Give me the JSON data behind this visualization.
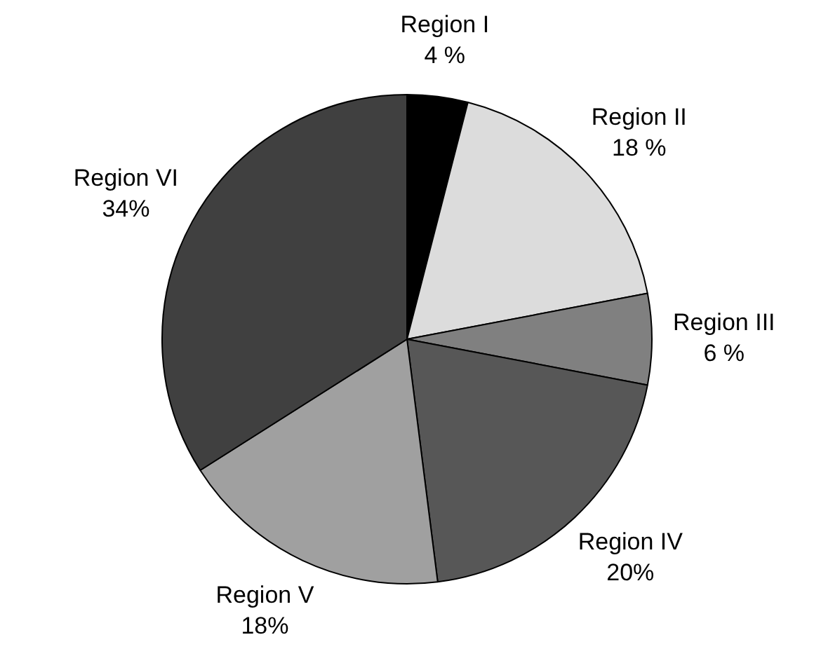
{
  "chart_data": {
    "type": "pie",
    "categories": [
      "Region I",
      "Region II",
      "Region III",
      "Region IV",
      "Region V",
      "Region VI"
    ],
    "values": [
      4,
      18,
      6,
      20,
      18,
      34
    ],
    "value_labels": [
      "4 %",
      "18 %",
      "6 %",
      "20%",
      "18%",
      "34%"
    ],
    "colors": [
      "#000000",
      "#dcdcdc",
      "#808080",
      "#575757",
      "#a0a0a0",
      "#404040"
    ],
    "legend": false
  }
}
